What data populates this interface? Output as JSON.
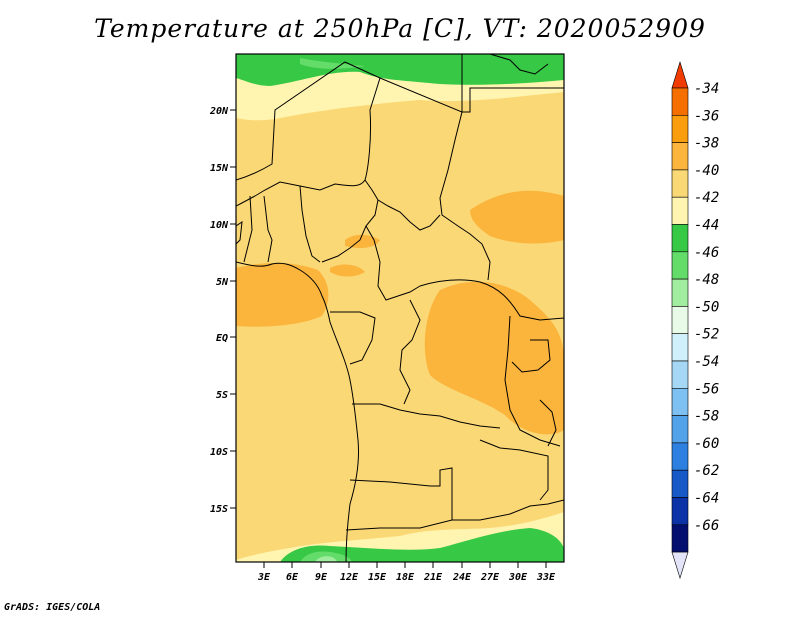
{
  "title": "Temperature at 250hPa [C], VT: 2020052909",
  "credit": "GrADS: IGES/COLA",
  "map": {
    "lat_ticks": [
      "20N",
      "15N",
      "10N",
      "5N",
      "EQ",
      "5S",
      "10S",
      "15S"
    ],
    "lon_ticks": [
      "3E",
      "6E",
      "9E",
      "12E",
      "15E",
      "18E",
      "21E",
      "24E",
      "27E",
      "30E",
      "33E"
    ]
  },
  "colorbar": {
    "labels": [
      "-34",
      "-36",
      "-38",
      "-40",
      "-42",
      "-44",
      "-46",
      "-48",
      "-50",
      "-52",
      "-54",
      "-56",
      "-58",
      "-60",
      "-62",
      "-64",
      "-66"
    ],
    "colors": [
      "#f03c00",
      "#f56e00",
      "#fa9e10",
      "#fbb43c",
      "#fbd876",
      "#fff5b0",
      "#37c846",
      "#64dc6a",
      "#a0eda0",
      "#e8fbe8",
      "#d0f0fb",
      "#a6d8f6",
      "#7ec0f1",
      "#52a3ea",
      "#2d80df",
      "#1659c7",
      "#0c32a8",
      "#050f70",
      "#e4e4f8"
    ]
  }
}
